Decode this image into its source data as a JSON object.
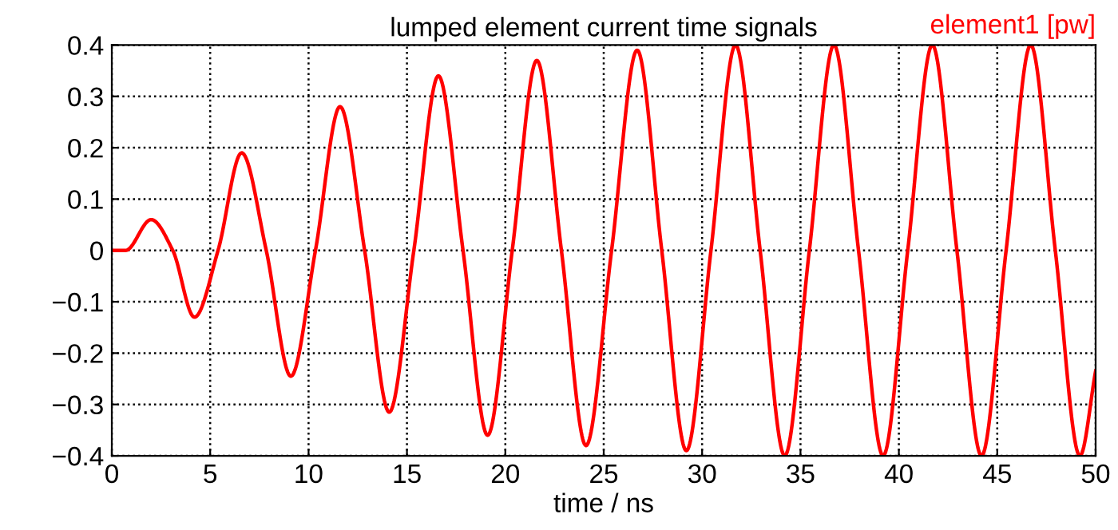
{
  "chart_data": {
    "type": "line",
    "title": "lumped element current time signals",
    "xlabel": "time / ns",
    "x": [
      0,
      0.7,
      2.0,
      3.1,
      4.2,
      5.4,
      6.6,
      7.85,
      9.1,
      10.35,
      11.6,
      12.85,
      14.1,
      15.35,
      16.6,
      17.85,
      19.1,
      20.35,
      21.6,
      22.85,
      24.1,
      25.4,
      26.7,
      27.95,
      29.2,
      30.45,
      31.7,
      32.95,
      34.2,
      35.45,
      36.7,
      37.95,
      39.2,
      40.45,
      41.7,
      42.95,
      44.2,
      45.45,
      46.7,
      47.95,
      49.2,
      50
    ],
    "series": [
      {
        "name": "element1 [pw]",
        "color": "#ff0000",
        "values": [
          0,
          0,
          0.06,
          0,
          -0.13,
          0,
          0.19,
          0,
          -0.245,
          0,
          0.28,
          0,
          -0.315,
          0,
          0.34,
          0,
          -0.36,
          0,
          0.37,
          0,
          -0.38,
          0,
          0.39,
          0,
          -0.39,
          0,
          0.4,
          0,
          -0.4,
          0,
          0.4,
          0,
          -0.4,
          0,
          0.4,
          0,
          -0.4,
          0,
          0.4,
          0,
          -0.4,
          -0.235
        ]
      }
    ],
    "xlim": [
      0,
      50
    ],
    "xticks": [
      0,
      5,
      10,
      15,
      20,
      25,
      30,
      35,
      40,
      45,
      50
    ],
    "ylim": [
      -0.4,
      0.4
    ],
    "yticks": [
      -0.4,
      -0.3,
      -0.2,
      -0.1,
      0,
      0.1,
      0.2,
      0.3,
      0.4
    ],
    "grid": true,
    "legend": "top right",
    "line_style": "solid"
  }
}
